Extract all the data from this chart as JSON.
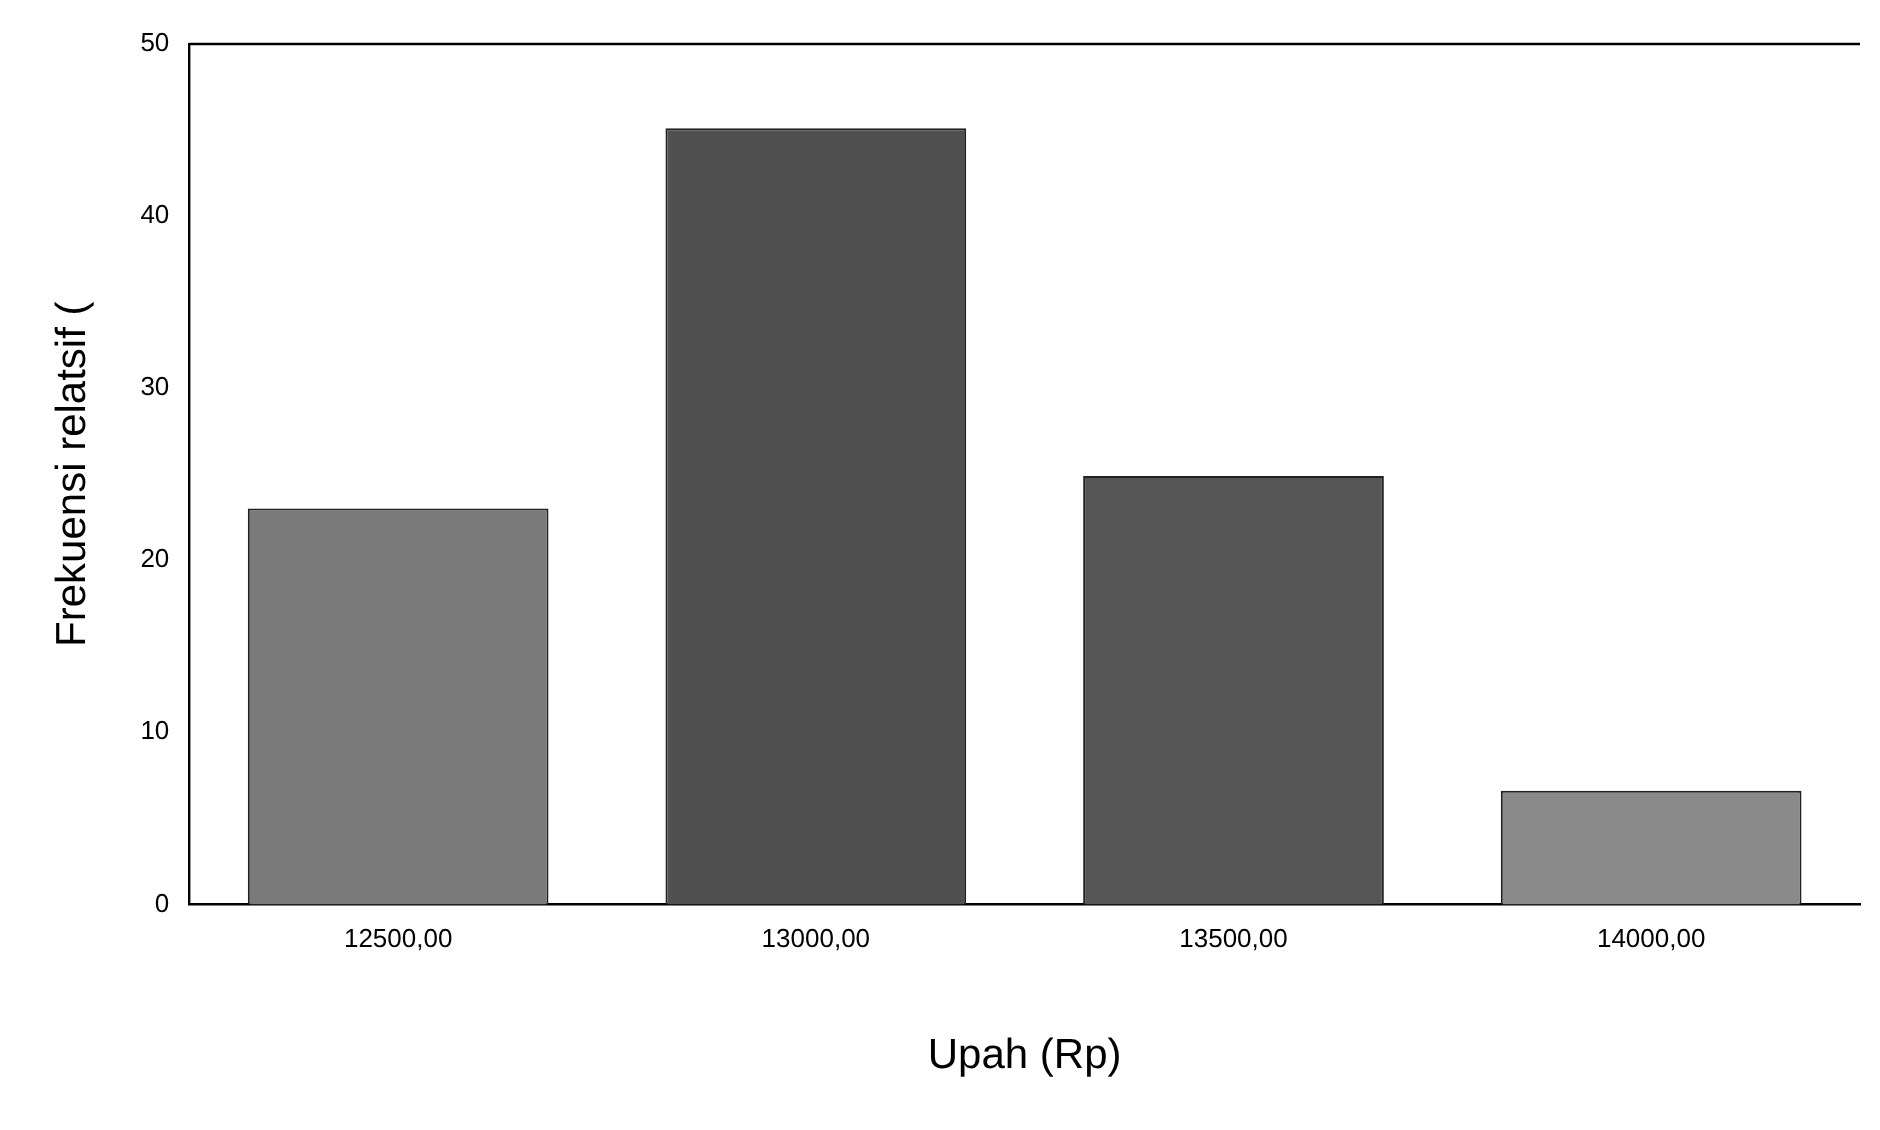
{
  "chart_data": {
    "type": "bar",
    "xlabel": "Upah (Rp)",
    "ylabel": "Frekuensi relatsif (",
    "categories": [
      "12500,00",
      "13000,00",
      "13500,00",
      "14000,00"
    ],
    "values": [
      23,
      45.1,
      24.9,
      6.6
    ],
    "colors": [
      "#7a7a7a",
      "#505050",
      "#555555",
      "#8a8a8a"
    ],
    "ylim": [
      0,
      50
    ],
    "yticks": [
      0,
      10,
      20,
      30,
      40,
      50
    ],
    "grid": false
  }
}
